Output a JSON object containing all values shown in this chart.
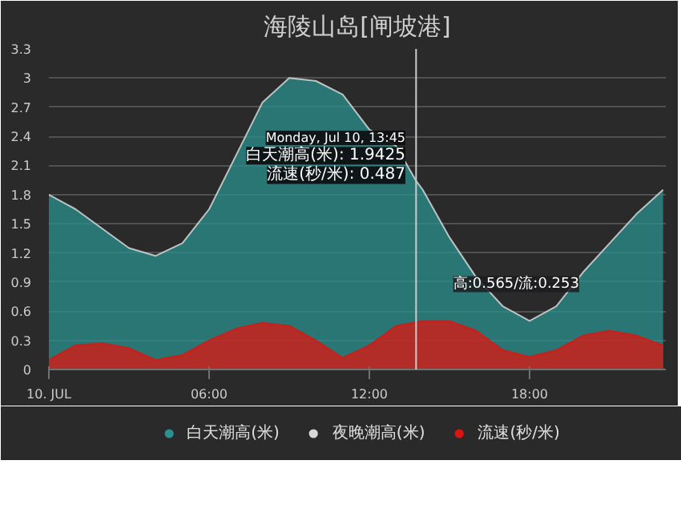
{
  "chart_data": {
    "type": "area",
    "title": "海陵山岛[闸坡港]",
    "x": [
      0,
      1,
      2,
      3,
      4,
      5,
      6,
      7,
      8,
      9,
      10,
      11,
      12,
      13,
      13.75,
      14,
      15,
      16,
      17,
      18,
      19,
      20,
      21,
      22,
      23
    ],
    "series": [
      {
        "name": "白天潮高(米)",
        "color": "#2b908f",
        "values": [
          1.8,
          1.65,
          1.45,
          1.25,
          1.17,
          1.3,
          1.65,
          2.2,
          2.75,
          3.0,
          2.97,
          2.83,
          2.47,
          2.3,
          1.9425,
          1.85,
          1.36,
          0.95,
          0.65,
          0.5,
          0.65,
          1.0,
          1.3,
          1.6,
          1.85
        ]
      },
      {
        "name": "夜晚潮高(米)",
        "color": "#d8d8d8",
        "values": [
          null,
          null,
          null,
          null,
          null,
          null,
          null,
          null,
          null,
          null,
          null,
          null,
          null,
          null,
          null,
          null,
          null,
          null,
          null,
          null,
          null,
          null,
          null,
          null,
          null
        ]
      },
      {
        "name": "流速(秒/米)",
        "color": "#e0140f",
        "values": [
          0.1,
          0.25,
          0.27,
          0.22,
          0.1,
          0.15,
          0.3,
          0.42,
          0.48,
          0.45,
          0.3,
          0.12,
          0.25,
          0.45,
          0.487,
          0.5,
          0.5,
          0.4,
          0.2,
          0.13,
          0.2,
          0.35,
          0.4,
          0.35,
          0.25
        ]
      }
    ],
    "xlim": [
      0,
      23.1
    ],
    "xticks": [
      {
        "value": 0,
        "label": "10. JUL"
      },
      {
        "value": 6,
        "label": "06:00"
      },
      {
        "value": 12,
        "label": "12:00"
      },
      {
        "value": 18,
        "label": "18:00"
      }
    ],
    "ylim": [
      0,
      3.3
    ],
    "yticks": [
      0,
      0.3,
      0.6,
      0.9,
      1.2,
      1.5,
      1.8,
      2.1,
      2.4,
      2.7,
      3,
      3.3
    ],
    "grid": "y",
    "legend": "bottom",
    "marker": "none",
    "ref_lines": [
      {
        "axis": "x",
        "value": 13.75,
        "color": "#cccccc"
      }
    ],
    "annotations": [
      "Monday, Jul 10, 13:45",
      "白天潮高(米): 1.9425",
      "流速(秒/米): 0.487",
      {
        "text": "高:0.565/流:0.253",
        "x": 17.5,
        "y": 0.565
      }
    ]
  }
}
